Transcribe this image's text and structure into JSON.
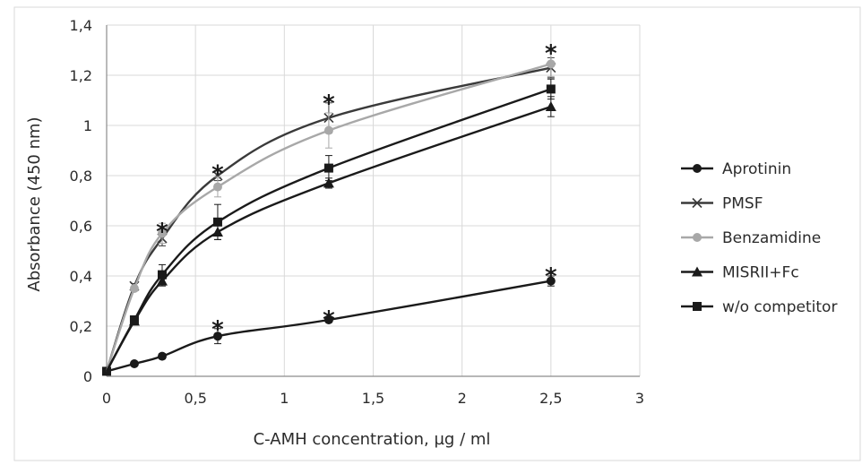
{
  "chart_data": {
    "type": "line",
    "title": "",
    "xlabel": "C-AMH concentration, µg / ml",
    "ylabel": "Absorbance (450 nm)",
    "xlim": [
      0,
      3
    ],
    "ylim": [
      0,
      1.4
    ],
    "x_ticks": [
      0,
      0.5,
      1,
      1.5,
      2,
      2.5,
      3
    ],
    "x_tick_labels": [
      "0",
      "0,5",
      "1",
      "1,5",
      "2",
      "2,5",
      "3"
    ],
    "y_ticks": [
      0,
      0.2,
      0.4,
      0.6,
      0.8,
      1.0,
      1.2,
      1.4
    ],
    "y_tick_labels": [
      "0",
      "0,2",
      "0,4",
      "0,6",
      "0,8",
      "1",
      "1,2",
      "1,4"
    ],
    "grid": true,
    "legend_position": "right",
    "x": [
      0,
      0.156,
      0.3125,
      0.625,
      1.25,
      2.5
    ],
    "series": [
      {
        "name": "Aprotinin",
        "marker": "circle",
        "color": "#1a1a1a",
        "values": [
          0.02,
          0.05,
          0.08,
          0.16,
          0.225,
          0.38
        ],
        "errors": [
          0,
          0,
          0.01,
          0.03,
          0.01,
          0.02
        ]
      },
      {
        "name": "PMSF",
        "marker": "x",
        "color": "#3a3a3a",
        "values": [
          0.02,
          0.36,
          0.55,
          0.8,
          1.03,
          1.23
        ],
        "errors": [
          0,
          0.01,
          0.03,
          0.02,
          0.06,
          0.04
        ]
      },
      {
        "name": "Benzamidine",
        "marker": "circle",
        "color": "#a8a8a8",
        "values": [
          0.02,
          0.35,
          0.57,
          0.755,
          0.98,
          1.245
        ],
        "errors": [
          0,
          0.01,
          0.04,
          0.04,
          0.07,
          0.05
        ]
      },
      {
        "name": "MISRII+Fc",
        "marker": "triangle",
        "color": "#1a1a1a",
        "values": [
          0.02,
          0.22,
          0.38,
          0.575,
          0.77,
          1.075
        ],
        "errors": [
          0,
          0.01,
          0.02,
          0.03,
          0.02,
          0.04
        ]
      },
      {
        "name": "w/o competitor",
        "marker": "square",
        "color": "#1a1a1a",
        "values": [
          0.02,
          0.225,
          0.405,
          0.615,
          0.83,
          1.145
        ],
        "errors": [
          0,
          0.01,
          0.04,
          0.07,
          0.05,
          0.04
        ]
      }
    ],
    "annotations": [
      {
        "text": "*",
        "x": 0.3125,
        "y": 0.59
      },
      {
        "text": "*",
        "x": 0.625,
        "y": 0.82
      },
      {
        "text": "*",
        "x": 1.25,
        "y": 1.1
      },
      {
        "text": "*",
        "x": 2.5,
        "y": 1.3
      },
      {
        "text": "*",
        "x": 0.625,
        "y": 0.2
      },
      {
        "text": "*",
        "x": 1.25,
        "y": 0.24
      },
      {
        "text": "*",
        "x": 2.5,
        "y": 0.41
      }
    ]
  }
}
